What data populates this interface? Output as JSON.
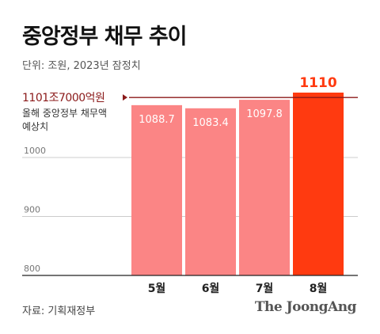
{
  "header": {
    "title": "중앙정부 채무 추이",
    "unit": "단위: 조원, 2023년 잠정치"
  },
  "footer": {
    "source": "자료: 기획재정부",
    "brand": "The JoongAng"
  },
  "colors": {
    "bar": "#fb8585",
    "highlight_bar": "#ff3a10",
    "reference_line": "#8b1a1a",
    "reference_label": "#8b1a1a",
    "highlight_label": "#ff3a10",
    "axis_label": "#777777",
    "grid": "#cccccc"
  },
  "chart_data": {
    "type": "bar",
    "title": "중앙정부 채무 추이",
    "categories": [
      "5월",
      "6월",
      "7월",
      "8월"
    ],
    "values": [
      1088.7,
      1083.4,
      1097.8,
      1110
    ],
    "value_labels": [
      "1088.7",
      "1083.4",
      "1097.8",
      "1110"
    ],
    "highlight_index": 3,
    "ylim": [
      800,
      1110
    ],
    "y_ticks": [
      800,
      900,
      1000
    ],
    "grid": true,
    "reference_line": {
      "value": 1101.7,
      "label": "1101조7000억원",
      "note_lines": [
        "올해 중앙정부 채무액",
        "예상치"
      ]
    }
  }
}
